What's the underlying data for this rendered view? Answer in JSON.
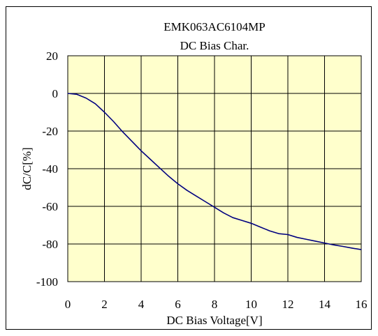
{
  "chart_data": {
    "type": "line",
    "title": "EMK063AC6104MP",
    "subtitle": "DC Bias Char.",
    "xlabel": "DC Bias Voltage[V]",
    "ylabel": "dC/C[%]",
    "xlim": [
      0,
      16
    ],
    "ylim": [
      -100,
      20
    ],
    "xticks": [
      0,
      2,
      4,
      6,
      8,
      10,
      12,
      14,
      16
    ],
    "yticks": [
      20,
      0,
      -20,
      -40,
      -60,
      -80,
      -100
    ],
    "grid": true,
    "legend": "none",
    "series": [
      {
        "x": [
          0,
          0.5,
          1,
          1.5,
          2,
          2.5,
          3,
          3.5,
          4,
          4.5,
          5,
          5.5,
          6,
          6.5,
          7,
          7.5,
          8,
          8.5,
          9,
          9.5,
          10,
          10.5,
          11,
          11.5,
          12,
          12.5,
          13,
          13.5,
          14,
          14.5,
          15,
          15.5,
          16
        ],
        "y": [
          0,
          -0.5,
          -2.5,
          -5.5,
          -10,
          -15,
          -20.5,
          -25.5,
          -30.5,
          -35,
          -39.5,
          -44,
          -48,
          -51.5,
          -54.5,
          -57.5,
          -60.5,
          -63.5,
          -66,
          -67.5,
          -69,
          -71,
          -73,
          -74.5,
          -75,
          -76.5,
          -77.5,
          -78.5,
          -79.5,
          -80.5,
          -81.3,
          -82.2,
          -83
        ]
      }
    ]
  },
  "colors": {
    "plot_background": "#ffffcc",
    "series_line": "#000080",
    "grid": "#000000",
    "page_background": "#ffffff"
  }
}
